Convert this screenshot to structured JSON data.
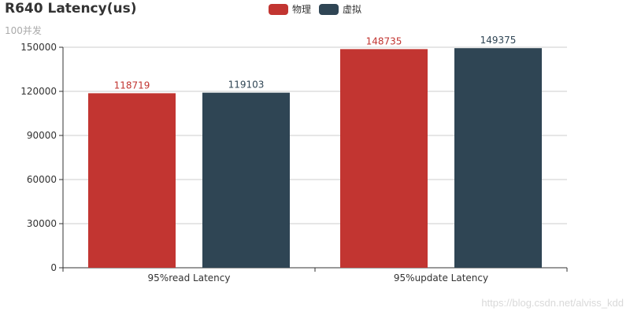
{
  "chart_data": {
    "type": "bar",
    "title": "R640 Latency(us)",
    "subtitle": "100并发",
    "categories": [
      "95%read Latency",
      "95%update Latency"
    ],
    "series": [
      {
        "name": "物理",
        "color": "#c23531",
        "values": [
          118719,
          148735
        ]
      },
      {
        "name": "虚拟",
        "color": "#2f4554",
        "values": [
          119103,
          149375
        ]
      }
    ],
    "y_ticks": [
      "0",
      "30000",
      "60000",
      "90000",
      "120000",
      "150000"
    ],
    "ylim": [
      0,
      150000
    ],
    "grid": true,
    "legend_position": "top-center",
    "data_labels": true
  },
  "watermark": "https://blog.csdn.net/alviss_kdd"
}
